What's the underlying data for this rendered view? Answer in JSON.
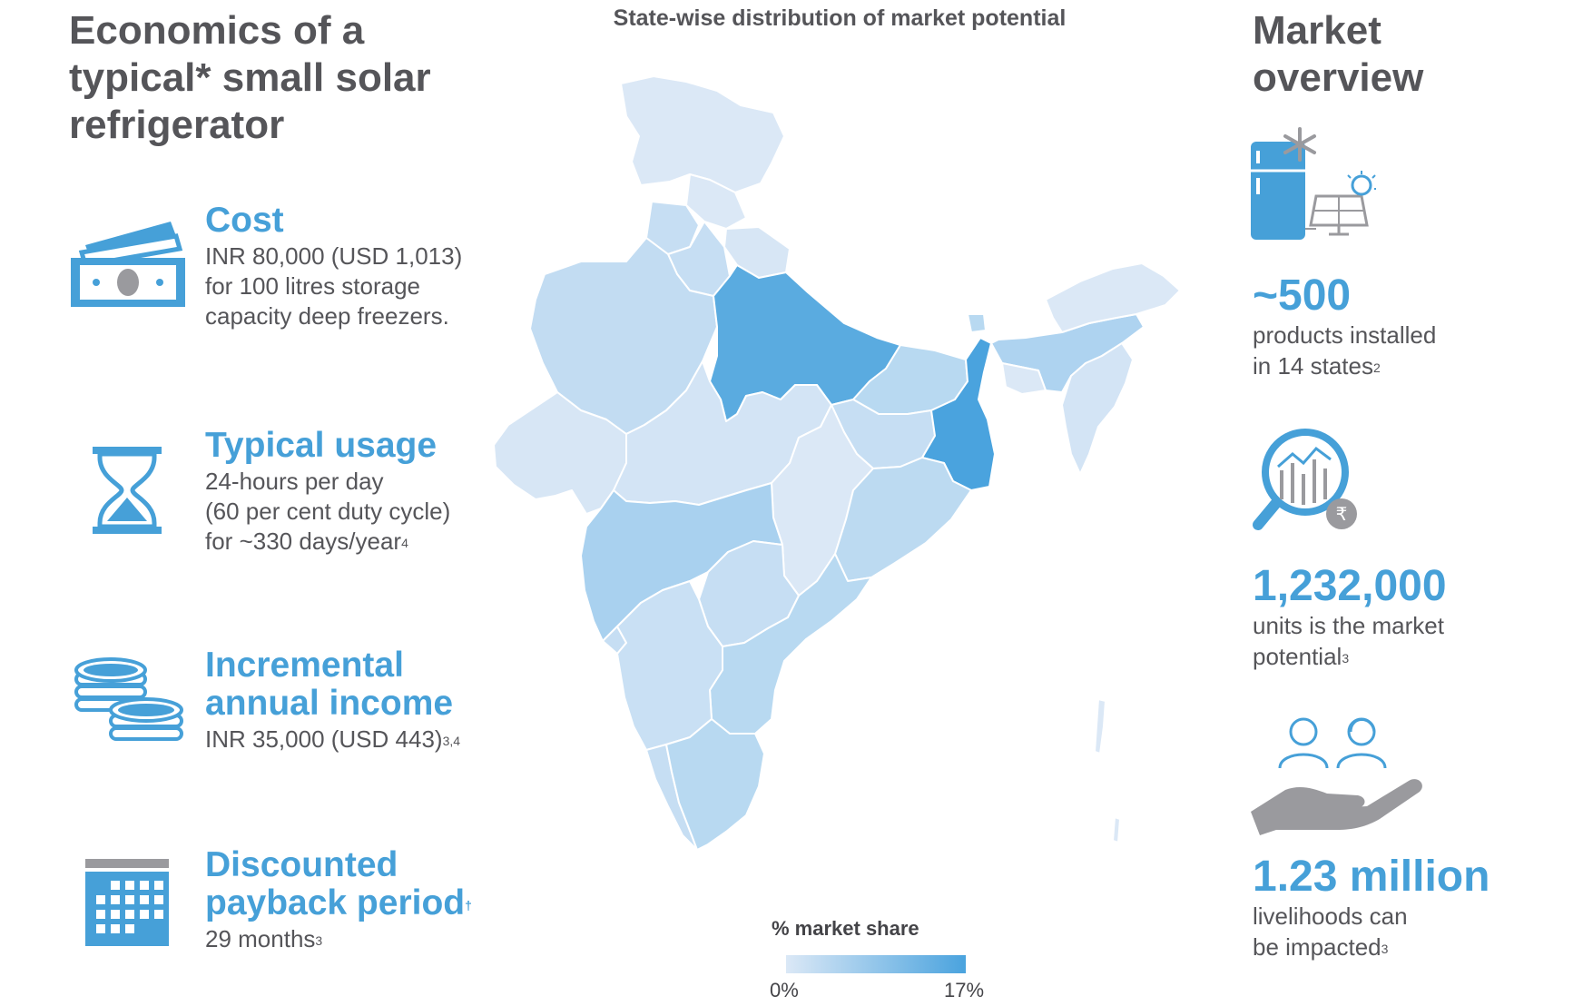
{
  "left_panel": {
    "title_lines": [
      "Economics of a",
      "typical* small solar",
      "refrigerator"
    ],
    "items": [
      {
        "heading_lines": [
          "Cost"
        ],
        "body_lines": [
          "INR 80,000 (USD 1,013)",
          "for 100 litres storage",
          "capacity deep freezers."
        ],
        "icon": "cash-icon"
      },
      {
        "heading_lines": [
          "Typical usage"
        ],
        "body_lines": [
          "24-hours per day",
          "(60 per cent duty cycle)",
          "for ~330 days/year"
        ],
        "body_sup": "4",
        "icon": "hourglass-icon"
      },
      {
        "heading_lines": [
          "Incremental",
          "annual income"
        ],
        "body_lines": [
          "INR 35,000 (USD 443)"
        ],
        "body_sup": "3,4",
        "icon": "coins-icon"
      },
      {
        "heading_lines": [
          "Discounted",
          "payback period"
        ],
        "heading_sup": "†",
        "body_lines": [
          "29 months"
        ],
        "body_sup": "3",
        "icon": "calendar-icon"
      }
    ]
  },
  "map": {
    "title": "State-wise distribution of market potential",
    "legend_title": "% market share",
    "legend_min": "0%",
    "legend_max": "17%",
    "colors": {
      "low": "#dbe8f6",
      "mid": "#b8d9f1",
      "high": "#4aa3de"
    }
  },
  "right_panel": {
    "title_lines": [
      "Market",
      "overview"
    ],
    "stats": [
      {
        "value": "~500",
        "text_lines": [
          "products installed",
          "in 14 states"
        ],
        "sup": "2",
        "icon": "solar-fridge-icon"
      },
      {
        "value": "1,232,000",
        "text_lines": [
          "units is the market",
          "potential"
        ],
        "sup": "3",
        "icon": "market-analysis-icon"
      },
      {
        "value": "1.23 million",
        "text_lines": [
          "livelihoods can",
          "be impacted"
        ],
        "sup": "3",
        "icon": "people-hand-icon"
      }
    ]
  },
  "colors": {
    "accent": "#46a0d8",
    "text": "#555559",
    "icon_gray": "#9a9a9e"
  }
}
